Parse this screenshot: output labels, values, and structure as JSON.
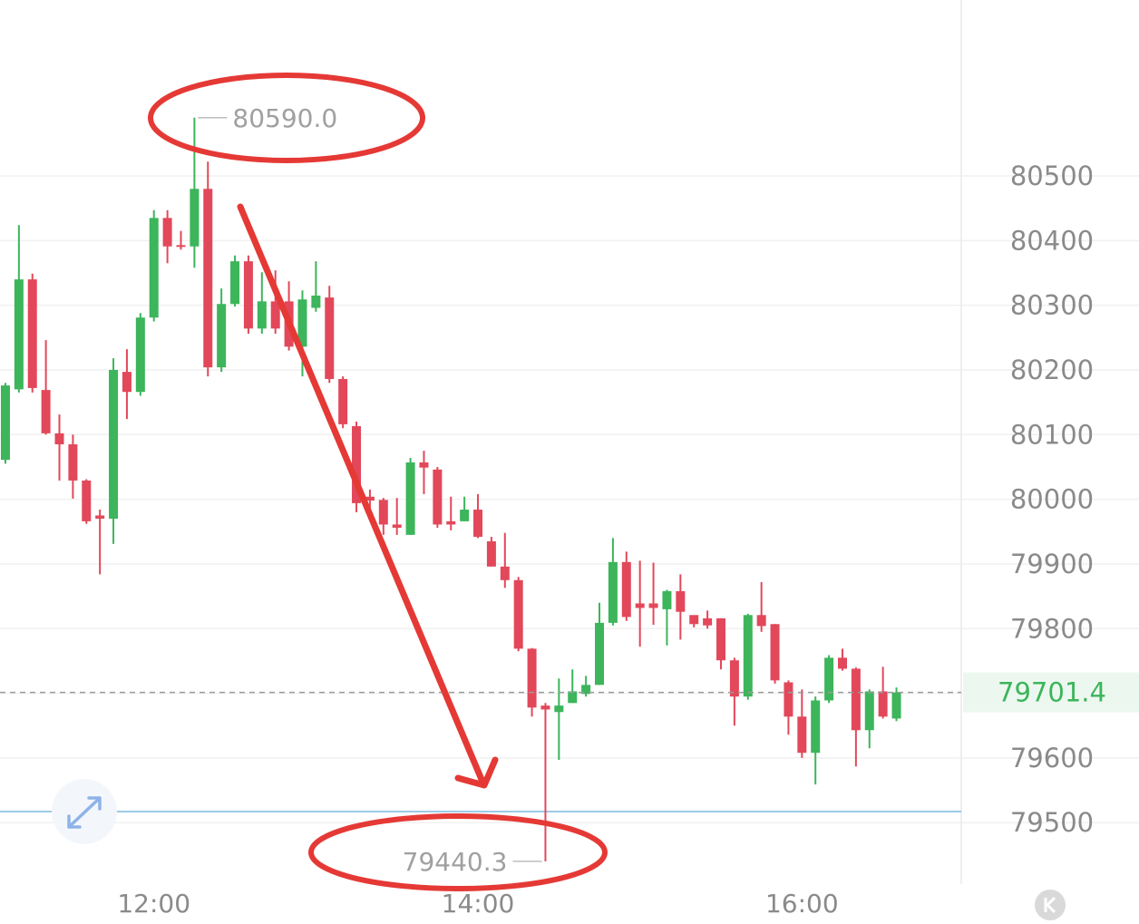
{
  "chart_data": {
    "type": "candlestick",
    "x": [
      665,
      670,
      675,
      680,
      685,
      690,
      695,
      700,
      705,
      710,
      715,
      720,
      725,
      730,
      735,
      740,
      745,
      750,
      755,
      760,
      765,
      770,
      775,
      780,
      785,
      790,
      795,
      800,
      805,
      810,
      815,
      820,
      825,
      830,
      835,
      840,
      845,
      850,
      855,
      860,
      865,
      870,
      875,
      880,
      885,
      890,
      895,
      900,
      905,
      910,
      915,
      920,
      925,
      930,
      935,
      940,
      945,
      950,
      955,
      960,
      965,
      970,
      975,
      980,
      985,
      990,
      995
    ],
    "open": [
      80061,
      80170,
      80340,
      80169,
      80102,
      80085,
      80029,
      79975,
      79970,
      80197,
      80166,
      80281,
      80435,
      80393,
      80391,
      80480,
      80204,
      80302,
      80368,
      80264,
      80306,
      80306,
      80236,
      80296,
      80312,
      80186,
      80113,
      80004,
      79999,
      79961,
      79945,
      80057,
      80046,
      79966,
      79966,
      79984,
      79935,
      79896,
      79875,
      79769,
      79681,
      79671,
      79685,
      79699,
      79713,
      79809,
      79903,
      79839,
      79839,
      79830,
      79858,
      79821,
      79816,
      79816,
      79751,
      79695,
      79821,
      79807,
      79717,
      79664,
      79608,
      79689,
      79755,
      79738,
      79643,
      79703,
      79661
    ],
    "high": [
      80180,
      80424,
      80349,
      80246,
      80131,
      80100,
      80031,
      79984,
      80218,
      80232,
      80288,
      80447,
      80447,
      80415,
      80590,
      80522,
      80326,
      80377,
      80377,
      80351,
      80354,
      80337,
      80323,
      80368,
      80330,
      80190,
      80120,
      80015,
      80002,
      80002,
      80064,
      80075,
      80050,
      80004,
      80004,
      80008,
      79942,
      79948,
      79880,
      79770,
      79685,
      79723,
      79737,
      79727,
      79840,
      79940,
      79919,
      79905,
      79902,
      79860,
      79884,
      79816,
      79828,
      79816,
      79755,
      79823,
      79872,
      79807,
      79720,
      79706,
      79695,
      79759,
      79769,
      79740,
      79706,
      79741,
      79709
    ],
    "low": [
      80055,
      80165,
      80165,
      80100,
      80029,
      80001,
      79962,
      79884,
      79931,
      80124,
      80160,
      80275,
      80365,
      80386,
      80358,
      80190,
      80197,
      80298,
      80256,
      80256,
      80256,
      80230,
      80190,
      80290,
      80180,
      80110,
      79980,
      79980,
      79945,
      79945,
      79945,
      80008,
      79956,
      79952,
      79966,
      79940,
      79896,
      79863,
      79765,
      79664,
      79440.3,
      79597,
      79685,
      79695,
      79713,
      79805,
      79812,
      79772,
      79806,
      79774,
      79783,
      79802,
      79800,
      79737,
      79650,
      79690,
      79795,
      79715,
      79636,
      79600,
      79559,
      79685,
      79735,
      79587,
      79615,
      79661,
      79657
    ],
    "close": [
      80176,
      80340,
      80172,
      80102,
      80085,
      80029,
      79966,
      79970,
      80200,
      80166,
      80281,
      80435,
      80391,
      80391,
      80480,
      80204,
      80302,
      80368,
      80264,
      80306,
      80264,
      80236,
      80309,
      80315,
      80186,
      80116,
      79994,
      79998,
      79961,
      79956,
      80057,
      80049,
      79961,
      79961,
      79984,
      79942,
      79896,
      79875,
      79769,
      79678,
      79675,
      79681,
      79703,
      79713,
      79809,
      79903,
      79818,
      79832,
      79832,
      79858,
      79826,
      79807,
      79805,
      79751,
      79695,
      79821,
      79804,
      79720,
      79664,
      79608,
      79689,
      79755,
      79738,
      79643,
      79703,
      79664,
      79701.4
    ],
    "up_color": "#3cb55b",
    "down_color": "#e2485a",
    "xlim": [
      663,
      1019
    ],
    "xticks": [
      {
        "value": 720,
        "label": "12:00"
      },
      {
        "value": 840,
        "label": "14:00"
      },
      {
        "value": 960,
        "label": "16:00"
      }
    ],
    "ylim": [
      79405,
      80772
    ],
    "yticks": [
      79500,
      79600,
      79700,
      79800,
      79900,
      80000,
      80100,
      80200,
      80300,
      80400,
      80500
    ],
    "grid": true,
    "last_price": 79701.4,
    "annotations": [
      {
        "value": 80590,
        "label": "80590.0"
      },
      {
        "value": 79440.3,
        "label": "79440.3"
      }
    ]
  }
}
